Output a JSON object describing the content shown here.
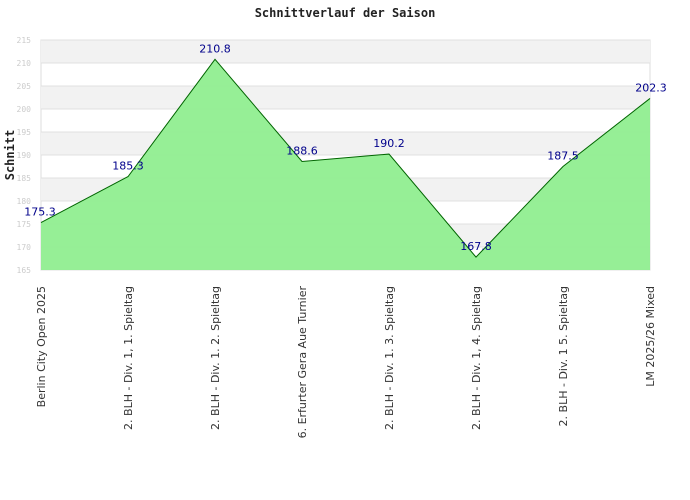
{
  "chart_data": {
    "type": "area",
    "title": "Schnittverlauf der Saison",
    "xlabel": "",
    "ylabel": "Schnitt",
    "ylim": [
      165,
      215
    ],
    "yticks": [
      165,
      170,
      175,
      180,
      185,
      190,
      195,
      200,
      205,
      210,
      215
    ],
    "grid": true,
    "categories": [
      "Berlin City Open 2025",
      "2. BLH - Div. 1, 1. Spieltag",
      "2. BLH - Div. 1. 2. Spieltag",
      "6. Erfurter Gera Aue Turnier",
      "2. BLH - Div. 1. 3. Spieltag",
      "2. BLH - Div. 1, 4. Spieltag",
      "2. BLH - Div. 1  5. Spieltag",
      "LM 2025/26 Mixed"
    ],
    "values": [
      175.3,
      185.3,
      210.8,
      188.6,
      190.2,
      167.8,
      187.5,
      202.3
    ],
    "data_labels": [
      "175.3",
      "185.3",
      "210.8",
      "188.6",
      "190.2",
      "167.8",
      "187.5",
      "202.3"
    ],
    "colors": {
      "fill": "#90ee90",
      "line": "#006400",
      "band": "#f2f2f2",
      "label": "#00008b"
    }
  }
}
